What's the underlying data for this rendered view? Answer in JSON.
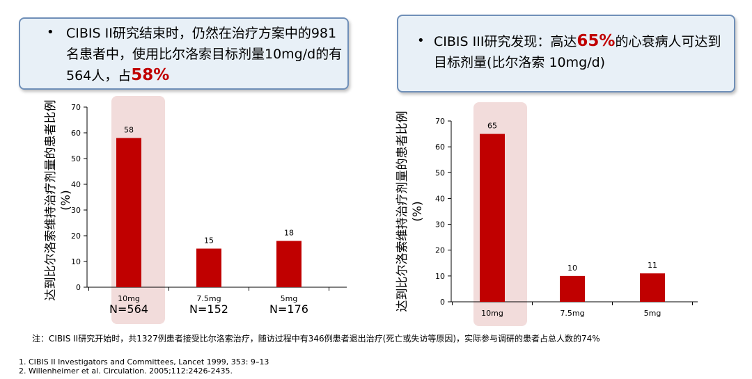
{
  "callouts": {
    "left": {
      "bullet": "•",
      "text_before": "CIBIS II研究结束时，仍然在治疗方案中的981名患者中，使用比尔洛索目标剂量10mg/d的有564人，占",
      "highlight": "58%"
    },
    "right": {
      "bullet": "•",
      "text_before": "CIBIS III研究发现：高达",
      "highlight": "65%",
      "text_after": "的心衰病人可达到目标剂量(比尔洛索 10mg/d)"
    }
  },
  "chart_data": [
    {
      "type": "bar",
      "title": "",
      "ylabel": "达到比尔洛索维持治疗剂量的患者比例(%)",
      "xlabel": "",
      "categories": [
        "10mg",
        "7.5mg",
        "5mg"
      ],
      "n_labels": [
        "N=564",
        "N=152",
        "N=176"
      ],
      "values": [
        58,
        15,
        18
      ],
      "ylim": [
        0,
        70
      ],
      "yticks": [
        0,
        10,
        20,
        30,
        40,
        50,
        60,
        70
      ],
      "highlighted_category": "10mg",
      "grid": false,
      "legend": "none"
    },
    {
      "type": "bar",
      "title": "",
      "ylabel": "达到比尔洛索维持治疗剂量的患者比例(%)",
      "xlabel": "",
      "categories": [
        "10mg",
        "7.5mg",
        "5mg"
      ],
      "values": [
        65,
        10,
        11
      ],
      "ylim": [
        0,
        70
      ],
      "yticks": [
        0,
        10,
        20,
        30,
        40,
        50,
        60,
        70
      ],
      "highlighted_category": "10mg",
      "grid": false,
      "legend": "none"
    }
  ],
  "colors": {
    "bar": "#c00000",
    "highlight_band": "#f2dcdb",
    "callout_bg": "#e8f0f7",
    "callout_border": "#6f8fb8",
    "accent_text": "#c00000"
  },
  "note": "注：CIBIS II研究开始时，共1327例患者接受比尔洛索治疗，随访过程中有346例患者退出治疗(死亡或失访等原因)，实际参与调研的患者占总人数的74%",
  "references": [
    "1.   CIBIS II Investigators and Committees, Lancet 1999, 353: 9–13",
    "2.   Willenheimer et al. Circulation. 2005;112:2426-2435."
  ]
}
